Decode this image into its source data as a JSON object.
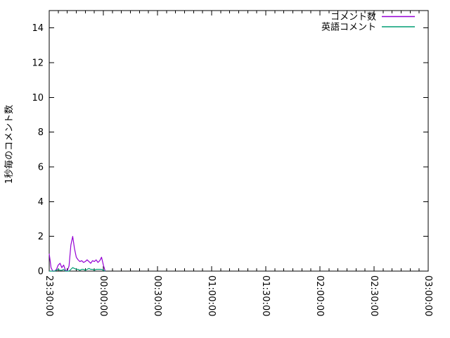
{
  "figure": {
    "background": "#ffffff",
    "border_color": "#000000",
    "ylabel": "1秒毎のコメント数"
  },
  "chart_data": {
    "type": "line",
    "title": "",
    "xlabel": "",
    "ylabel": "1秒毎のコメント数",
    "grid": "off",
    "legend_position": "top-right-inside",
    "x_axis": {
      "tick_labels": [
        "23:30:00",
        "00:00:00",
        "00:30:00",
        "01:00:00",
        "01:30:00",
        "02:00:00",
        "02:30:00",
        "03:00:00"
      ],
      "tick_rotation_deg": 90,
      "range_minutes": [
        0,
        210
      ],
      "major_interval_minutes": 30,
      "minor_interval_minutes": 5
    },
    "y_axis": {
      "ticks": [
        0,
        2,
        4,
        6,
        8,
        10,
        12,
        14
      ],
      "range": [
        0,
        15
      ]
    },
    "series": [
      {
        "name": "コメント数",
        "color": "#9400d3",
        "times": [
          "23:30:00",
          "23:31:00",
          "23:32:00",
          "23:33:00",
          "23:34:00",
          "23:35:00",
          "23:36:00",
          "23:37:00",
          "23:38:00",
          "23:39:00",
          "23:40:00",
          "23:41:00",
          "23:42:00",
          "23:43:00",
          "23:44:00",
          "23:45:00",
          "23:46:00",
          "23:47:00",
          "23:48:00",
          "23:49:00",
          "23:50:00",
          "23:51:00",
          "23:52:00",
          "23:53:00",
          "23:54:00",
          "23:55:00",
          "23:56:00",
          "23:57:00",
          "23:58:00",
          "23:59:00",
          "00:00:00",
          "00:01:00"
        ],
        "x_minutes": [
          0,
          1,
          2,
          3,
          4,
          5,
          6,
          7,
          8,
          9,
          10,
          11,
          12,
          13,
          14,
          15,
          16,
          17,
          18,
          19,
          20,
          21,
          22,
          23,
          24,
          25,
          26,
          27,
          28,
          29,
          30,
          31
        ],
        "values": [
          1.0,
          0.2,
          0,
          0,
          0.1,
          0.35,
          0.45,
          0.2,
          0.35,
          0.05,
          0,
          0.3,
          1.5,
          2.0,
          1.3,
          0.8,
          0.65,
          0.55,
          0.6,
          0.5,
          0.55,
          0.65,
          0.55,
          0.45,
          0.6,
          0.55,
          0.65,
          0.5,
          0.6,
          0.8,
          0.35,
          0
        ]
      },
      {
        "name": "英語コメント",
        "color": "#009e73",
        "times": [
          "23:30:00",
          "23:31:00",
          "23:32:00",
          "23:33:00",
          "23:34:00",
          "23:35:00",
          "23:36:00",
          "23:37:00",
          "23:38:00",
          "23:39:00",
          "23:40:00",
          "23:41:00",
          "23:42:00",
          "23:43:00",
          "23:44:00",
          "23:45:00",
          "23:46:00",
          "23:47:00",
          "23:48:00",
          "23:49:00",
          "23:50:00",
          "23:51:00",
          "23:52:00",
          "23:53:00",
          "23:54:00",
          "23:55:00",
          "23:56:00",
          "23:57:00",
          "23:58:00",
          "23:59:00",
          "00:00:00",
          "00:01:00"
        ],
        "x_minutes": [
          0,
          1,
          2,
          3,
          4,
          5,
          6,
          7,
          8,
          9,
          10,
          11,
          12,
          13,
          14,
          15,
          16,
          17,
          18,
          19,
          20,
          21,
          22,
          23,
          24,
          25,
          26,
          27,
          28,
          29,
          30,
          31
        ],
        "values": [
          0,
          0,
          0,
          0,
          0.05,
          0.1,
          0.05,
          0.05,
          0.1,
          0,
          0,
          0,
          0.1,
          0.2,
          0.15,
          0.1,
          0.1,
          0.05,
          0.1,
          0.1,
          0.05,
          0.1,
          0.15,
          0.1,
          0.1,
          0.05,
          0.1,
          0.1,
          0.1,
          0.1,
          0.05,
          0
        ]
      }
    ]
  }
}
